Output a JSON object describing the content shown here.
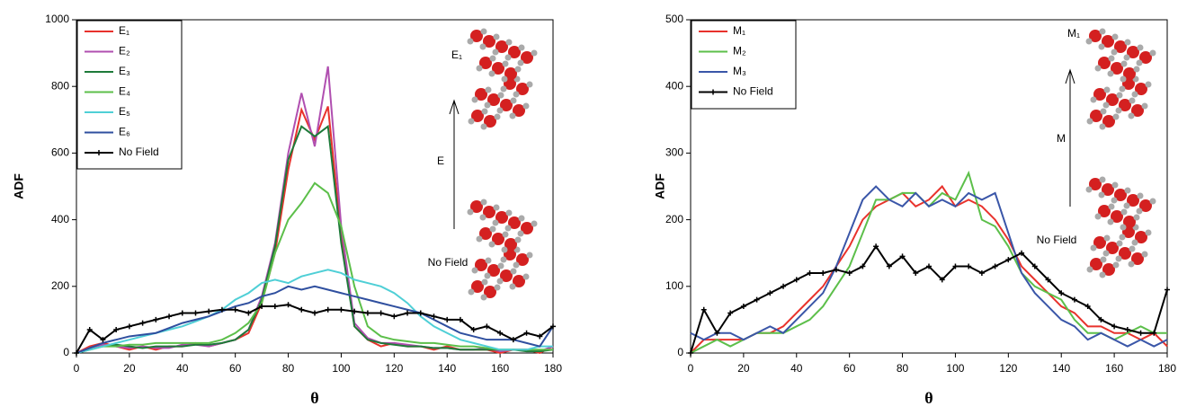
{
  "chart_data": [
    {
      "type": "line",
      "x_label": "θ",
      "y_label": "ADF",
      "x": [
        0,
        5,
        10,
        15,
        20,
        25,
        30,
        35,
        40,
        45,
        50,
        55,
        60,
        65,
        70,
        75,
        80,
        85,
        90,
        95,
        100,
        105,
        110,
        115,
        120,
        125,
        130,
        135,
        140,
        145,
        150,
        155,
        160,
        165,
        170,
        175,
        180
      ],
      "xlim": [
        0,
        180
      ],
      "xticks": [
        0,
        20,
        40,
        60,
        80,
        100,
        120,
        140,
        160,
        180
      ],
      "ylim": [
        0,
        1000
      ],
      "yticks": [
        0,
        200,
        400,
        600,
        800,
        1000
      ],
      "legend": "upper left",
      "annotations": [
        "E₁",
        "E",
        "No Field"
      ],
      "series": [
        {
          "name": "E₁",
          "color": "#e8322c",
          "values": [
            0,
            20,
            30,
            20,
            10,
            20,
            10,
            20,
            20,
            30,
            20,
            30,
            40,
            60,
            150,
            300,
            550,
            730,
            640,
            740,
            350,
            80,
            40,
            20,
            30,
            20,
            20,
            10,
            20,
            10,
            10,
            10,
            0,
            10,
            10,
            0,
            20
          ]
        },
        {
          "name": "E₂",
          "color": "#b04fb0",
          "values": [
            0,
            15,
            25,
            20,
            15,
            20,
            15,
            15,
            25,
            25,
            20,
            30,
            40,
            70,
            170,
            330,
            600,
            780,
            620,
            860,
            380,
            90,
            45,
            30,
            30,
            25,
            20,
            15,
            15,
            10,
            10,
            15,
            5,
            10,
            10,
            5,
            20
          ]
        },
        {
          "name": "E₃",
          "color": "#1e7a3a",
          "values": [
            0,
            10,
            20,
            25,
            20,
            15,
            20,
            20,
            20,
            25,
            25,
            30,
            40,
            70,
            160,
            320,
            580,
            680,
            650,
            680,
            330,
            80,
            40,
            30,
            25,
            20,
            20,
            15,
            15,
            10,
            10,
            10,
            10,
            10,
            5,
            5,
            10
          ]
        },
        {
          "name": "E₄",
          "color": "#5cbf4a",
          "values": [
            0,
            10,
            20,
            20,
            25,
            25,
            30,
            30,
            30,
            30,
            30,
            40,
            60,
            90,
            150,
            300,
            400,
            450,
            510,
            480,
            380,
            200,
            80,
            50,
            40,
            35,
            30,
            30,
            25,
            20,
            20,
            15,
            10,
            10,
            10,
            10,
            10
          ]
        },
        {
          "name": "E₅",
          "color": "#4fcfd6",
          "values": [
            0,
            10,
            20,
            30,
            40,
            50,
            60,
            70,
            80,
            95,
            110,
            130,
            160,
            180,
            210,
            220,
            210,
            230,
            240,
            250,
            240,
            220,
            210,
            200,
            180,
            150,
            110,
            80,
            60,
            40,
            30,
            20,
            10,
            10,
            10,
            20,
            20
          ]
        },
        {
          "name": "E₆",
          "color": "#2f4f9f",
          "values": [
            0,
            15,
            30,
            40,
            50,
            55,
            60,
            75,
            90,
            100,
            110,
            125,
            140,
            150,
            170,
            180,
            200,
            190,
            200,
            190,
            180,
            170,
            160,
            150,
            140,
            130,
            120,
            100,
            80,
            60,
            50,
            40,
            40,
            40,
            30,
            20,
            80
          ]
        },
        {
          "name": "No Field",
          "color": "#000000",
          "values": [
            0,
            70,
            40,
            70,
            80,
            90,
            100,
            110,
            120,
            120,
            125,
            130,
            130,
            120,
            140,
            140,
            145,
            130,
            120,
            130,
            130,
            125,
            120,
            120,
            110,
            120,
            120,
            110,
            100,
            100,
            70,
            80,
            60,
            40,
            60,
            50,
            80
          ]
        }
      ]
    },
    {
      "type": "line",
      "x_label": "θ",
      "y_label": "ADF",
      "x": [
        0,
        5,
        10,
        15,
        20,
        25,
        30,
        35,
        40,
        45,
        50,
        55,
        60,
        65,
        70,
        75,
        80,
        85,
        90,
        95,
        100,
        105,
        110,
        115,
        120,
        125,
        130,
        135,
        140,
        145,
        150,
        155,
        160,
        165,
        170,
        175,
        180
      ],
      "xlim": [
        0,
        180
      ],
      "xticks": [
        0,
        20,
        40,
        60,
        80,
        100,
        120,
        140,
        160,
        180
      ],
      "ylim": [
        0,
        500
      ],
      "yticks": [
        0,
        100,
        200,
        300,
        400,
        500
      ],
      "legend": "upper left",
      "annotations": [
        "M₁",
        "M",
        "No Field"
      ],
      "series": [
        {
          "name": "M₁",
          "color": "#e8322c",
          "values": [
            0,
            20,
            20,
            20,
            20,
            30,
            30,
            40,
            60,
            80,
            100,
            130,
            160,
            200,
            220,
            230,
            240,
            220,
            230,
            250,
            220,
            230,
            220,
            200,
            170,
            130,
            110,
            90,
            70,
            60,
            40,
            40,
            30,
            30,
            20,
            30,
            10
          ]
        },
        {
          "name": "M₂",
          "color": "#5cbf4a",
          "values": [
            0,
            10,
            20,
            10,
            20,
            30,
            30,
            30,
            40,
            50,
            70,
            100,
            130,
            180,
            230,
            230,
            240,
            240,
            220,
            240,
            230,
            270,
            200,
            190,
            160,
            120,
            100,
            90,
            80,
            50,
            30,
            30,
            20,
            30,
            40,
            30,
            30
          ]
        },
        {
          "name": "M₃",
          "color": "#3a56a8",
          "values": [
            30,
            20,
            30,
            30,
            20,
            30,
            40,
            30,
            50,
            70,
            90,
            130,
            180,
            230,
            250,
            230,
            220,
            240,
            220,
            230,
            220,
            240,
            230,
            240,
            180,
            120,
            90,
            70,
            50,
            40,
            20,
            30,
            20,
            10,
            20,
            10,
            20
          ]
        },
        {
          "name": "No Field",
          "color": "#000000",
          "values": [
            0,
            65,
            30,
            60,
            70,
            80,
            90,
            100,
            110,
            120,
            120,
            125,
            120,
            130,
            160,
            130,
            145,
            120,
            130,
            110,
            130,
            130,
            120,
            130,
            140,
            150,
            130,
            110,
            90,
            80,
            70,
            50,
            40,
            35,
            30,
            30,
            95
          ]
        }
      ]
    }
  ]
}
